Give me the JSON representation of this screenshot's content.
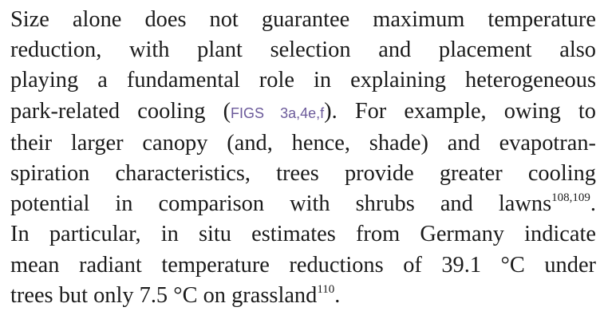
{
  "paragraph": {
    "line1": "Size alone does not guarantee maximum temperature",
    "line2": "reduction, with plant selection and placement also",
    "line3": "playing a fundamental role in explaining heterogeneous",
    "line4_before": "park-related cooling (",
    "line4_figs": "FIGS 3a,4e,f",
    "line4_after": "). For example, owing to",
    "line5": "their larger canopy (and, hence, shade) and evapotran-",
    "line6": "spiration characteristics, trees provide greater cooling",
    "line7_text": "potential in comparison with shrubs and lawns",
    "line7_cite": "108,109",
    "line7_end": ".",
    "line8": "In particular, in situ estimates from Germany indicate",
    "line9": "mean radiant temperature reductions of 39.1 °C under",
    "line10_text": "trees but only 7.5 °C on grassland",
    "line10_cite": "110",
    "line10_end": "."
  }
}
